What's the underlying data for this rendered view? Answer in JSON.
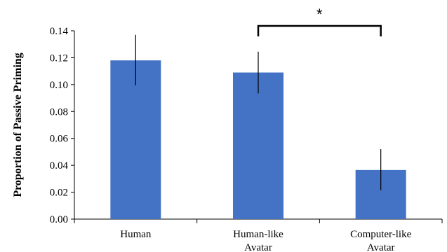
{
  "chart_data": {
    "type": "bar",
    "title": "",
    "xlabel": "",
    "ylabel": "Proportion of Passive Priming",
    "ylim": [
      0,
      0.14
    ],
    "yticks": [
      "0.00",
      "0.02",
      "0.04",
      "0.06",
      "0.08",
      "0.10",
      "0.12",
      "0.14"
    ],
    "grid": false,
    "legend": "none",
    "bar_color": "#4472C4",
    "categories": [
      {
        "lines": [
          "Human"
        ]
      },
      {
        "lines": [
          "Human-like",
          "Avatar"
        ]
      },
      {
        "lines": [
          "Computer-like",
          "Avatar"
        ]
      }
    ],
    "values": [
      0.118,
      0.109,
      0.0365
    ],
    "error_bars": [
      {
        "low": 0.0995,
        "high": 0.137
      },
      {
        "low": 0.0935,
        "high": 0.1245
      },
      {
        "low": 0.0215,
        "high": 0.052
      }
    ],
    "significance": [
      {
        "from": 1,
        "to": 2,
        "label": "*"
      }
    ]
  }
}
